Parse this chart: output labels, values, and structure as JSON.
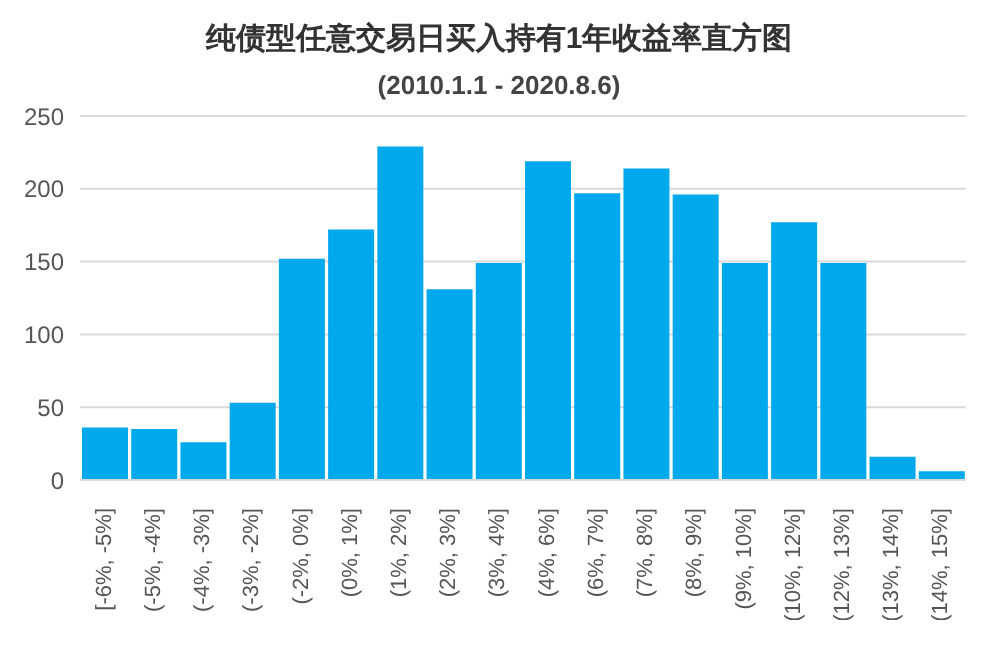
{
  "chart_data": {
    "type": "bar",
    "title": "纯债型任意交易日买入持有1年收益率直方图",
    "subtitle": "(2010.1.1 - 2020.8.6)",
    "categories": [
      "[-6%, -5%]",
      "(-5%, -4%]",
      "(-4%, -3%]",
      "(-3%, -2%]",
      "(-2%, 0%]",
      "(0%, 1%]",
      "(1%, 2%]",
      "(2%, 3%]",
      "(3%, 4%]",
      "(4%, 6%]",
      "(6%, 7%]",
      "(7%, 8%]",
      "(8%, 9%]",
      "(9%, 10%]",
      "(10%, 12%]",
      "(12%, 13%]",
      "(13%, 14%]",
      "(14%, 15%]"
    ],
    "values": [
      36,
      35,
      26,
      53,
      152,
      172,
      229,
      131,
      149,
      219,
      197,
      214,
      196,
      149,
      177,
      149,
      16,
      6
    ],
    "color": "#00a8ec",
    "ylim": [
      0,
      250
    ],
    "yticks": [
      0,
      50,
      100,
      150,
      200,
      250
    ],
    "grid": "y",
    "legend": false
  }
}
